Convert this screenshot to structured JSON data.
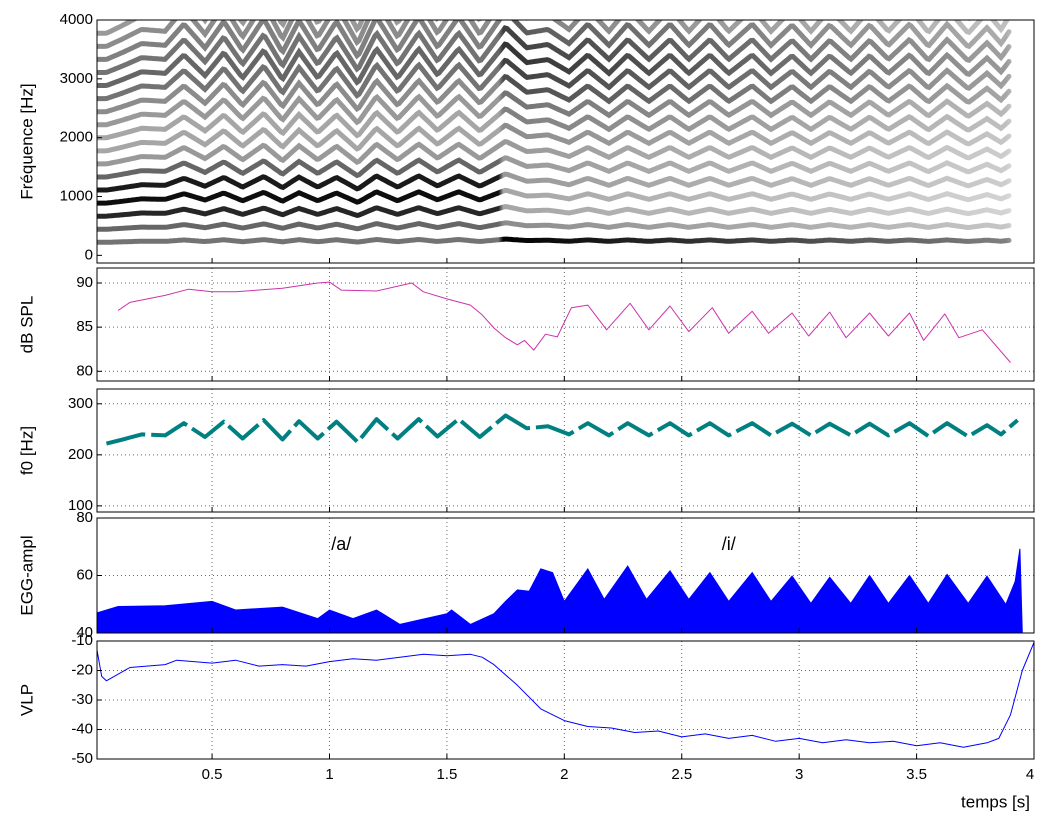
{
  "chart_data": [
    {
      "type": "spectrogram",
      "ylabel": "Fréquence [Hz]",
      "ylim": [
        -130,
        4000
      ],
      "yticks": [
        0,
        1000,
        2000,
        3000,
        4000
      ]
    },
    {
      "type": "line",
      "ylabel": "dB SPL",
      "color": "#cc33aa",
      "ylim": [
        78.9,
        91.7
      ],
      "yticks": [
        80,
        85,
        90
      ],
      "grid": true,
      "x": [
        0.1,
        0.15,
        0.3,
        0.4,
        0.5,
        0.6,
        0.8,
        0.95,
        1.0,
        1.05,
        1.2,
        1.35,
        1.4,
        1.5,
        1.6,
        1.65,
        1.7,
        1.75,
        1.8,
        1.83,
        1.87,
        1.92,
        1.97,
        2.03,
        2.1,
        2.18,
        2.28,
        2.36,
        2.45,
        2.53,
        2.63,
        2.7,
        2.8,
        2.87,
        2.97,
        3.04,
        3.13,
        3.2,
        3.3,
        3.38,
        3.47,
        3.53,
        3.62,
        3.68,
        3.78,
        3.9
      ],
      "values": [
        86.9,
        87.8,
        88.6,
        89.3,
        89,
        89,
        89.4,
        90,
        90.1,
        89.2,
        89.1,
        90,
        89,
        88.2,
        87.5,
        86.4,
        84.9,
        83.8,
        83,
        83.5,
        82.4,
        84.2,
        83.9,
        87.2,
        87.5,
        84.7,
        87.7,
        84.7,
        87.4,
        84.5,
        87.2,
        84.3,
        86.8,
        84.3,
        86.6,
        84,
        86.7,
        83.8,
        86.6,
        84,
        86.6,
        83.5,
        86.5,
        83.8,
        84.7,
        81
      ]
    },
    {
      "type": "line",
      "ylabel": "f0 [Hz]",
      "color": "#008080",
      "ylim": [
        88,
        329
      ],
      "yticks": [
        100,
        200,
        300
      ],
      "grid": true,
      "x": [
        0.05,
        0.12,
        0.2,
        0.3,
        0.38,
        0.47,
        0.55,
        0.63,
        0.72,
        0.8,
        0.87,
        0.95,
        1.03,
        1.12,
        1.2,
        1.29,
        1.38,
        1.46,
        1.55,
        1.64,
        1.75,
        1.84,
        1.93,
        2.02,
        2.1,
        2.19,
        2.27,
        2.36,
        2.45,
        2.53,
        2.62,
        2.7,
        2.8,
        2.88,
        2.97,
        3.05,
        3.13,
        3.22,
        3.3,
        3.38,
        3.47,
        3.55,
        3.63,
        3.72,
        3.8,
        3.86,
        3.93
      ],
      "values": [
        222,
        230,
        240,
        238,
        262,
        235,
        265,
        232,
        268,
        230,
        266,
        232,
        265,
        225,
        270,
        232,
        270,
        236,
        270,
        235,
        277,
        252,
        256,
        240,
        262,
        238,
        262,
        238,
        262,
        238,
        262,
        238,
        262,
        238,
        261,
        238,
        261,
        238,
        261,
        238,
        262,
        237,
        262,
        236,
        258,
        240,
        268
      ]
    },
    {
      "type": "area",
      "ylabel": "EGG-ampl",
      "color": "#0000ff",
      "ylim": [
        40,
        80
      ],
      "yticks": [
        40,
        60,
        80
      ],
      "grid": true,
      "x": [
        0.01,
        0.1,
        0.3,
        0.5,
        0.6,
        0.8,
        0.95,
        1.0,
        1.1,
        1.2,
        1.3,
        1.5,
        1.52,
        1.6,
        1.7,
        1.75,
        1.8,
        1.85,
        1.9,
        1.95,
        2.0,
        2.1,
        2.17,
        2.27,
        2.35,
        2.45,
        2.53,
        2.62,
        2.7,
        2.8,
        2.88,
        2.97,
        3.05,
        3.13,
        3.22,
        3.3,
        3.38,
        3.47,
        3.55,
        3.63,
        3.72,
        3.8,
        3.88,
        3.92,
        3.94,
        3.95
      ],
      "values": [
        47,
        49.2,
        49.5,
        51,
        48,
        49,
        45,
        48,
        45,
        48,
        43,
        46.7,
        48,
        43,
        46.7,
        51,
        55,
        54.5,
        62.3,
        61,
        51,
        62.3,
        51.7,
        63.3,
        51.7,
        61.6,
        51.7,
        61,
        51,
        61,
        51,
        59.8,
        50.3,
        59.4,
        50.3,
        60,
        50.3,
        60,
        50.3,
        60.4,
        50.3,
        59.8,
        49.9,
        58,
        69.3,
        40
      ],
      "annotations": [
        {
          "text": "/a/",
          "x": 1.05,
          "y": 70.5
        },
        {
          "text": "/i/",
          "x": 2.7,
          "y": 70.5
        }
      ]
    },
    {
      "type": "line",
      "ylabel": "VLP",
      "color": "#0000ff",
      "ylim": [
        -50,
        -10
      ],
      "yticks": [
        -50,
        -40,
        -30,
        -20,
        -10
      ],
      "grid": true,
      "xlabel": "temps [s]",
      "xlim": [
        0.01,
        4
      ],
      "xticks": [
        0.5,
        1,
        1.5,
        2,
        2.5,
        3,
        3.5,
        4
      ],
      "x": [
        0.01,
        0.03,
        0.05,
        0.15,
        0.3,
        0.35,
        0.5,
        0.6,
        0.7,
        0.8,
        0.9,
        1.0,
        1.1,
        1.2,
        1.3,
        1.4,
        1.5,
        1.6,
        1.65,
        1.7,
        1.8,
        1.9,
        2.0,
        2.1,
        2.2,
        2.3,
        2.4,
        2.5,
        2.6,
        2.7,
        2.8,
        2.9,
        3.0,
        3.1,
        3.2,
        3.3,
        3.4,
        3.5,
        3.6,
        3.7,
        3.8,
        3.85,
        3.9,
        3.95,
        4.0
      ],
      "values": [
        -13,
        -22,
        -23.5,
        -19,
        -18,
        -16.5,
        -17.5,
        -16.5,
        -18.5,
        -18,
        -18.5,
        -17,
        -16,
        -16.5,
        -15.5,
        -14.5,
        -15,
        -14.5,
        -15.5,
        -18,
        -25,
        -33,
        -37,
        -39,
        -39.5,
        -41,
        -40.5,
        -42.5,
        -41.5,
        -43,
        -42,
        -44,
        -43,
        -44.5,
        -43.5,
        -44.5,
        -44,
        -45.5,
        -44.5,
        -46,
        -44.5,
        -43,
        -35,
        -20,
        -10.5
      ]
    }
  ]
}
